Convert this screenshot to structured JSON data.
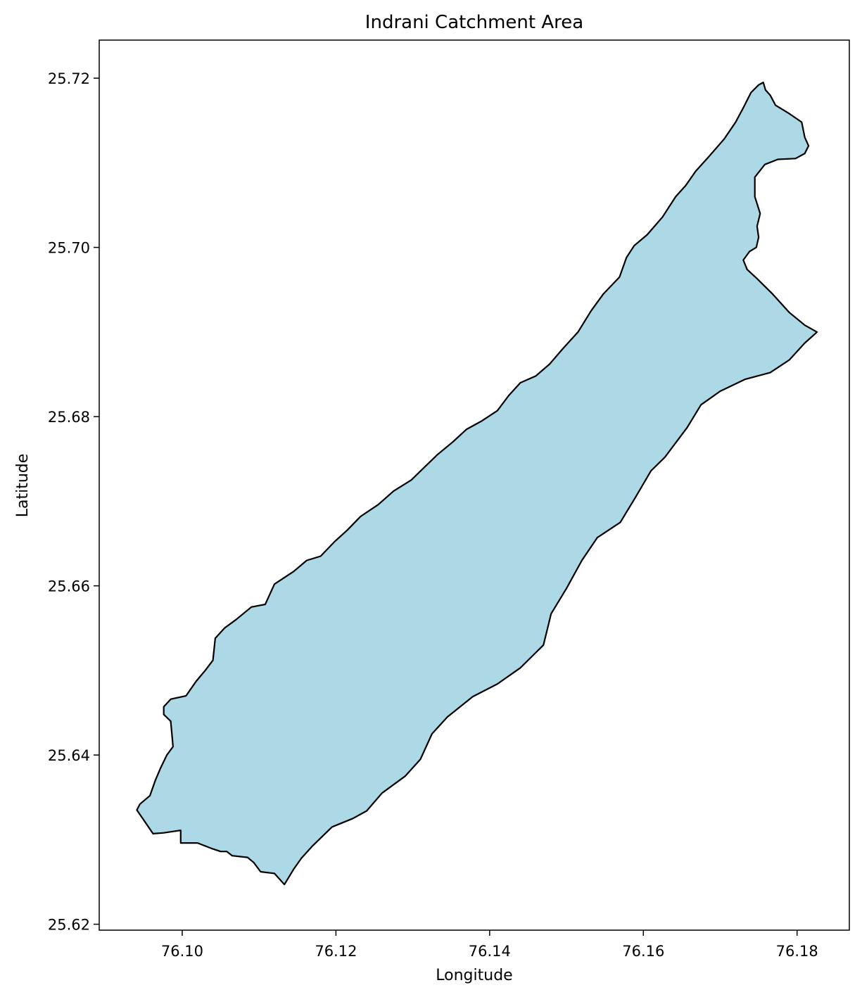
{
  "map": {
    "title": "Indrani Catchment Area",
    "xlabel": "Longitude",
    "ylabel": "Latitude",
    "fill_color": "#add8e6",
    "edge_color": "#000000",
    "xlim": [
      76.0892,
      76.1868
    ],
    "ylim": [
      25.6193,
      25.7245
    ],
    "x_ticks": [
      76.1,
      76.12,
      76.14,
      76.16,
      76.18
    ],
    "x_tick_labels": [
      "76.10",
      "76.12",
      "76.14",
      "76.16",
      "76.18"
    ],
    "y_ticks": [
      25.62,
      25.64,
      25.66,
      25.68,
      25.7,
      25.72
    ],
    "y_tick_labels": [
      "25.62",
      "25.64",
      "25.66",
      "25.68",
      "25.70",
      "25.72"
    ],
    "boundary_lonlat": [
      [
        76.0941,
        25.6335
      ],
      [
        76.0962,
        25.6307
      ],
      [
        76.0976,
        25.6308
      ],
      [
        76.0998,
        25.6311
      ],
      [
        76.0998,
        25.6296
      ],
      [
        76.102,
        25.6296
      ],
      [
        76.104,
        25.6289
      ],
      [
        76.105,
        25.6286
      ],
      [
        76.1058,
        25.6286
      ],
      [
        76.1065,
        25.6281
      ],
      [
        76.1085,
        25.6279
      ],
      [
        76.1093,
        25.6273
      ],
      [
        76.1102,
        25.6262
      ],
      [
        76.112,
        25.626
      ],
      [
        76.1133,
        25.6247
      ],
      [
        76.1145,
        25.6265
      ],
      [
        76.1155,
        25.6278
      ],
      [
        76.117,
        25.6293
      ],
      [
        76.1195,
        25.6315
      ],
      [
        76.1222,
        25.6325
      ],
      [
        76.124,
        25.6334
      ],
      [
        76.126,
        25.6355
      ],
      [
        76.129,
        25.6375
      ],
      [
        76.131,
        25.6395
      ],
      [
        76.1325,
        25.6425
      ],
      [
        76.1345,
        25.6445
      ],
      [
        76.1378,
        25.6469
      ],
      [
        76.141,
        25.6484
      ],
      [
        76.144,
        25.6503
      ],
      [
        76.147,
        25.653
      ],
      [
        76.148,
        25.6567
      ],
      [
        76.15,
        25.6597
      ],
      [
        76.152,
        25.663
      ],
      [
        76.154,
        25.6657
      ],
      [
        76.157,
        25.6675
      ],
      [
        76.159,
        25.6705
      ],
      [
        76.161,
        25.6736
      ],
      [
        76.1628,
        25.6752
      ],
      [
        76.1657,
        25.6787
      ],
      [
        76.1675,
        25.6814
      ],
      [
        76.17,
        25.683
      ],
      [
        76.1732,
        25.6844
      ],
      [
        76.1765,
        25.6852
      ],
      [
        76.179,
        25.6867
      ],
      [
        76.181,
        25.6887
      ],
      [
        76.1826,
        25.69
      ],
      [
        76.181,
        25.6908
      ],
      [
        76.179,
        25.6923
      ],
      [
        76.1768,
        25.6945
      ],
      [
        76.1748,
        25.6963
      ],
      [
        76.1735,
        25.6974
      ],
      [
        76.173,
        25.6985
      ],
      [
        76.1738,
        25.6995
      ],
      [
        76.1747,
        25.7
      ],
      [
        76.175,
        25.7012
      ],
      [
        76.1748,
        25.7025
      ],
      [
        76.1752,
        25.704
      ],
      [
        76.1745,
        25.706
      ],
      [
        76.1745,
        25.7083
      ],
      [
        76.1758,
        25.7098
      ],
      [
        76.1775,
        25.7104
      ],
      [
        76.1798,
        25.7105
      ],
      [
        76.181,
        25.7111
      ],
      [
        76.1815,
        25.712
      ],
      [
        76.181,
        25.713
      ],
      [
        76.1806,
        25.7148
      ],
      [
        76.179,
        25.7158
      ],
      [
        76.1772,
        25.7168
      ],
      [
        76.1765,
        25.718
      ],
      [
        76.1759,
        25.7186
      ],
      [
        76.1756,
        25.7195
      ],
      [
        76.175,
        25.7192
      ],
      [
        76.174,
        25.7183
      ],
      [
        76.173,
        25.7165
      ],
      [
        76.172,
        25.7148
      ],
      [
        76.1705,
        25.7128
      ],
      [
        76.1685,
        25.7107
      ],
      [
        76.1668,
        25.709
      ],
      [
        76.1655,
        25.7073
      ],
      [
        76.1642,
        25.706
      ],
      [
        76.1625,
        25.7036
      ],
      [
        76.1605,
        25.7015
      ],
      [
        76.1588,
        25.7002
      ],
      [
        76.1578,
        25.6988
      ],
      [
        76.1569,
        25.6965
      ],
      [
        76.1548,
        25.6945
      ],
      [
        76.1532,
        25.6925
      ],
      [
        76.1515,
        25.69
      ],
      [
        76.1495,
        25.688
      ],
      [
        76.1478,
        25.6862
      ],
      [
        76.146,
        25.6848
      ],
      [
        76.144,
        25.684
      ],
      [
        76.1425,
        25.6825
      ],
      [
        76.141,
        25.6807
      ],
      [
        76.139,
        25.6795
      ],
      [
        76.137,
        25.6785
      ],
      [
        76.1352,
        25.677
      ],
      [
        76.1332,
        25.6755
      ],
      [
        76.1315,
        25.674
      ],
      [
        76.1298,
        25.6725
      ],
      [
        76.1275,
        25.6712
      ],
      [
        76.1255,
        25.6696
      ],
      [
        76.1232,
        25.6682
      ],
      [
        76.1215,
        25.6666
      ],
      [
        76.1198,
        25.6652
      ],
      [
        76.118,
        25.6635
      ],
      [
        76.1162,
        25.663
      ],
      [
        76.1145,
        25.6617
      ],
      [
        76.112,
        25.6602
      ],
      [
        76.1108,
        25.6578
      ],
      [
        76.109,
        25.6575
      ],
      [
        76.107,
        25.656
      ],
      [
        76.1055,
        25.655
      ],
      [
        76.1043,
        25.6538
      ],
      [
        76.104,
        25.6512
      ],
      [
        76.103,
        25.65
      ],
      [
        76.1018,
        25.6487
      ],
      [
        76.1005,
        25.647
      ],
      [
        76.0985,
        25.6466
      ],
      [
        76.0976,
        25.6457
      ],
      [
        76.0976,
        25.6448
      ],
      [
        76.0985,
        25.644
      ],
      [
        76.0988,
        25.641
      ],
      [
        76.098,
        25.64
      ],
      [
        76.0972,
        25.6385
      ],
      [
        76.0965,
        25.637
      ],
      [
        76.0958,
        25.6352
      ],
      [
        76.0945,
        25.6342
      ],
      [
        76.0941,
        25.6335
      ]
    ]
  }
}
